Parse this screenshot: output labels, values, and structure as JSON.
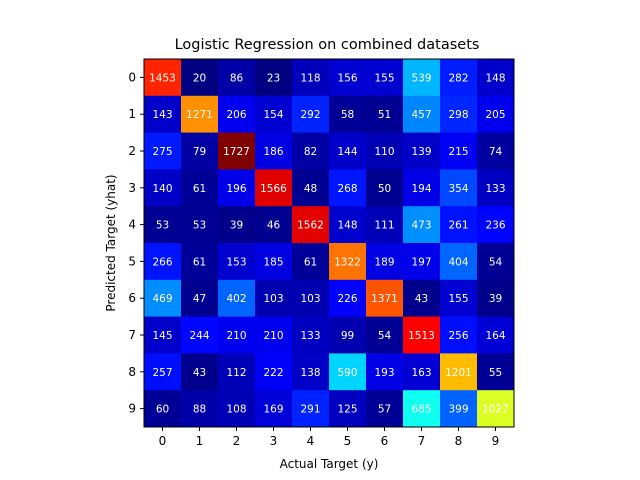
{
  "chart_data": {
    "type": "heatmap",
    "title": "Logistic Regression on combined datasets",
    "xlabel": "Actual Target (y)",
    "ylabel": "Predicted Target (yhat)",
    "x_ticks": [
      "0",
      "1",
      "2",
      "3",
      "4",
      "5",
      "6",
      "7",
      "8",
      "9"
    ],
    "y_ticks": [
      "0",
      "1",
      "2",
      "3",
      "4",
      "5",
      "6",
      "7",
      "8",
      "9"
    ],
    "colormap": "jet",
    "grid": false,
    "matrix": [
      [
        1453,
        20,
        86,
        23,
        118,
        156,
        155,
        539,
        282,
        148
      ],
      [
        143,
        1271,
        206,
        154,
        292,
        58,
        51,
        457,
        298,
        205
      ],
      [
        275,
        79,
        1727,
        186,
        82,
        144,
        110,
        139,
        215,
        74
      ],
      [
        140,
        61,
        196,
        1566,
        48,
        268,
        50,
        194,
        354,
        133
      ],
      [
        53,
        53,
        39,
        46,
        1562,
        148,
        111,
        473,
        261,
        236
      ],
      [
        266,
        61,
        153,
        185,
        61,
        1322,
        189,
        197,
        404,
        54
      ],
      [
        469,
        47,
        402,
        103,
        103,
        226,
        1371,
        43,
        155,
        39
      ],
      [
        145,
        244,
        210,
        210,
        133,
        99,
        54,
        1513,
        256,
        164
      ],
      [
        257,
        43,
        112,
        222,
        138,
        590,
        193,
        163,
        1201,
        55
      ],
      [
        60,
        88,
        108,
        169,
        291,
        125,
        57,
        685,
        399,
        1027
      ]
    ]
  }
}
